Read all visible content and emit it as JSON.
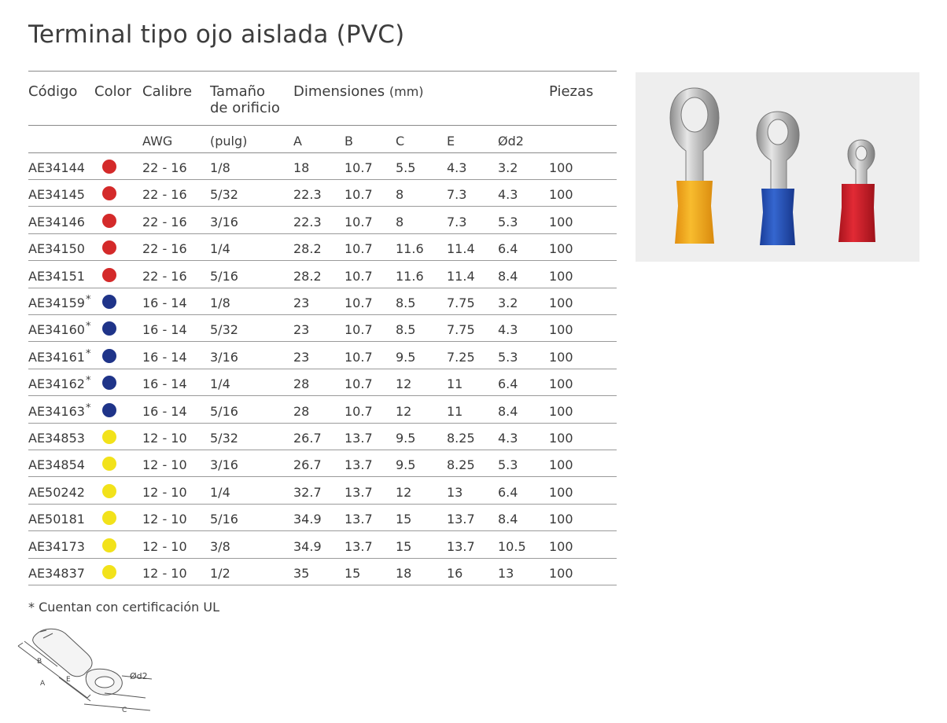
{
  "title": "Terminal tipo ojo aislada (PVC)",
  "headers": {
    "codigo": "Código",
    "color": "Color",
    "calibre": "Calibre",
    "tamano_line1": "Tamaño",
    "tamano_line2": "de orificio",
    "dimensiones": "Dimensiones",
    "dimensiones_unit": "(mm)",
    "piezas": "Piezas"
  },
  "subheaders": {
    "awg": "AWG",
    "pulg": "(pulg)",
    "a": "A",
    "b": "B",
    "c": "C",
    "e": "E",
    "d2": "Ød2"
  },
  "colors": {
    "red": "#d42a2a",
    "blue": "#1f3489",
    "yellow": "#f2e21a"
  },
  "rows": [
    {
      "codigo": "AE34144",
      "star": "",
      "color": "red",
      "calibre": "22 - 16",
      "tamano": "1/8",
      "a": "18",
      "b": "10.7",
      "c": "5.5",
      "e": "4.3",
      "d2": "3.2",
      "piezas": "100"
    },
    {
      "codigo": "AE34145",
      "star": "",
      "color": "red",
      "calibre": "22 - 16",
      "tamano": "5/32",
      "a": "22.3",
      "b": "10.7",
      "c": "8",
      "e": "7.3",
      "d2": "4.3",
      "piezas": "100"
    },
    {
      "codigo": "AE34146",
      "star": "",
      "color": "red",
      "calibre": "22 - 16",
      "tamano": "3/16",
      "a": "22.3",
      "b": "10.7",
      "c": "8",
      "e": "7.3",
      "d2": "5.3",
      "piezas": "100"
    },
    {
      "codigo": "AE34150",
      "star": "",
      "color": "red",
      "calibre": "22 - 16",
      "tamano": "1/4",
      "a": "28.2",
      "b": "10.7",
      "c": "11.6",
      "e": "11.4",
      "d2": "6.4",
      "piezas": "100"
    },
    {
      "codigo": "AE34151",
      "star": "",
      "color": "red",
      "calibre": "22 - 16",
      "tamano": "5/16",
      "a": "28.2",
      "b": "10.7",
      "c": "11.6",
      "e": "11.4",
      "d2": "8.4",
      "piezas": "100"
    },
    {
      "codigo": "AE34159",
      "star": "*",
      "color": "blue",
      "calibre": "16 - 14",
      "tamano": "1/8",
      "a": "23",
      "b": "10.7",
      "c": "8.5",
      "e": "7.75",
      "d2": "3.2",
      "piezas": "100"
    },
    {
      "codigo": "AE34160",
      "star": "*",
      "color": "blue",
      "calibre": "16 - 14",
      "tamano": "5/32",
      "a": "23",
      "b": "10.7",
      "c": "8.5",
      "e": "7.75",
      "d2": "4.3",
      "piezas": "100"
    },
    {
      "codigo": "AE34161",
      "star": "*",
      "color": "blue",
      "calibre": "16 - 14",
      "tamano": "3/16",
      "a": "23",
      "b": "10.7",
      "c": "9.5",
      "e": "7.25",
      "d2": "5.3",
      "piezas": "100"
    },
    {
      "codigo": "AE34162",
      "star": "*",
      "color": "blue",
      "calibre": "16 - 14",
      "tamano": "1/4",
      "a": "28",
      "b": "10.7",
      "c": "12",
      "e": "11",
      "d2": "6.4",
      "piezas": "100"
    },
    {
      "codigo": "AE34163",
      "star": "*",
      "color": "blue",
      "calibre": "16 - 14",
      "tamano": "5/16",
      "a": "28",
      "b": "10.7",
      "c": "12",
      "e": "11",
      "d2": "8.4",
      "piezas": "100"
    },
    {
      "codigo": "AE34853",
      "star": "",
      "color": "yellow",
      "calibre": "12 - 10",
      "tamano": "5/32",
      "a": "26.7",
      "b": "13.7",
      "c": "9.5",
      "e": "8.25",
      "d2": "4.3",
      "piezas": "100"
    },
    {
      "codigo": "AE34854",
      "star": "",
      "color": "yellow",
      "calibre": "12 - 10",
      "tamano": "3/16",
      "a": "26.7",
      "b": "13.7",
      "c": "9.5",
      "e": "8.25",
      "d2": "5.3",
      "piezas": "100"
    },
    {
      "codigo": "AE50242",
      "star": "",
      "color": "yellow",
      "calibre": "12 - 10",
      "tamano": "1/4",
      "a": "32.7",
      "b": "13.7",
      "c": "12",
      "e": "13",
      "d2": "6.4",
      "piezas": "100"
    },
    {
      "codigo": "AE50181",
      "star": "",
      "color": "yellow",
      "calibre": "12 - 10",
      "tamano": "5/16",
      "a": "34.9",
      "b": "13.7",
      "c": "15",
      "e": "13.7",
      "d2": "8.4",
      "piezas": "100"
    },
    {
      "codigo": "AE34173",
      "star": "",
      "color": "yellow",
      "calibre": "12 - 10",
      "tamano": "3/8",
      "a": "34.9",
      "b": "13.7",
      "c": "15",
      "e": "13.7",
      "d2": "10.5",
      "piezas": "100"
    },
    {
      "codigo": "AE34837",
      "star": "",
      "color": "yellow",
      "calibre": "12 - 10",
      "tamano": "1/2",
      "a": "35",
      "b": "15",
      "c": "18",
      "e": "16",
      "d2": "13",
      "piezas": "100"
    }
  ],
  "footnote": "* Cuentan con certificación UL",
  "diagram_labels": {
    "a": "A",
    "b": "B",
    "c": "C",
    "e": "E",
    "d2": "Ød2"
  },
  "photo": {
    "terminals": [
      "yellow-ring-terminal",
      "blue-ring-terminal",
      "red-ring-terminal"
    ],
    "insulation_colors": [
      "#f0a81c",
      "#2453b8",
      "#cf1f2a"
    ],
    "background": "#eeeeee"
  }
}
